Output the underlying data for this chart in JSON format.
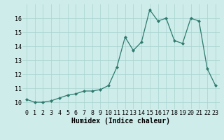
{
  "x": [
    0,
    1,
    2,
    3,
    4,
    5,
    6,
    7,
    8,
    9,
    10,
    11,
    12,
    13,
    14,
    15,
    16,
    17,
    18,
    19,
    20,
    21,
    22,
    23
  ],
  "y": [
    10.2,
    10.0,
    10.0,
    10.1,
    10.3,
    10.5,
    10.6,
    10.8,
    10.8,
    10.9,
    11.2,
    12.5,
    14.65,
    13.7,
    14.3,
    16.6,
    15.8,
    16.0,
    14.4,
    14.2,
    16.0,
    15.8,
    12.4,
    11.2
  ],
  "xlabel": "Humidex (Indice chaleur)",
  "ylim": [
    9.5,
    17.0
  ],
  "xlim": [
    -0.5,
    23.5
  ],
  "yticks": [
    10,
    11,
    12,
    13,
    14,
    15,
    16
  ],
  "xticks": [
    0,
    1,
    2,
    3,
    4,
    5,
    6,
    7,
    8,
    9,
    10,
    11,
    12,
    13,
    14,
    15,
    16,
    17,
    18,
    19,
    20,
    21,
    22,
    23
  ],
  "line_color": "#2d7a6e",
  "marker_color": "#2d7a6e",
  "bg_color": "#ceecea",
  "grid_color": "#a8d4d0",
  "xlabel_fontsize": 7,
  "tick_fontsize": 6,
  "marker_size": 2.0,
  "line_width": 0.9
}
